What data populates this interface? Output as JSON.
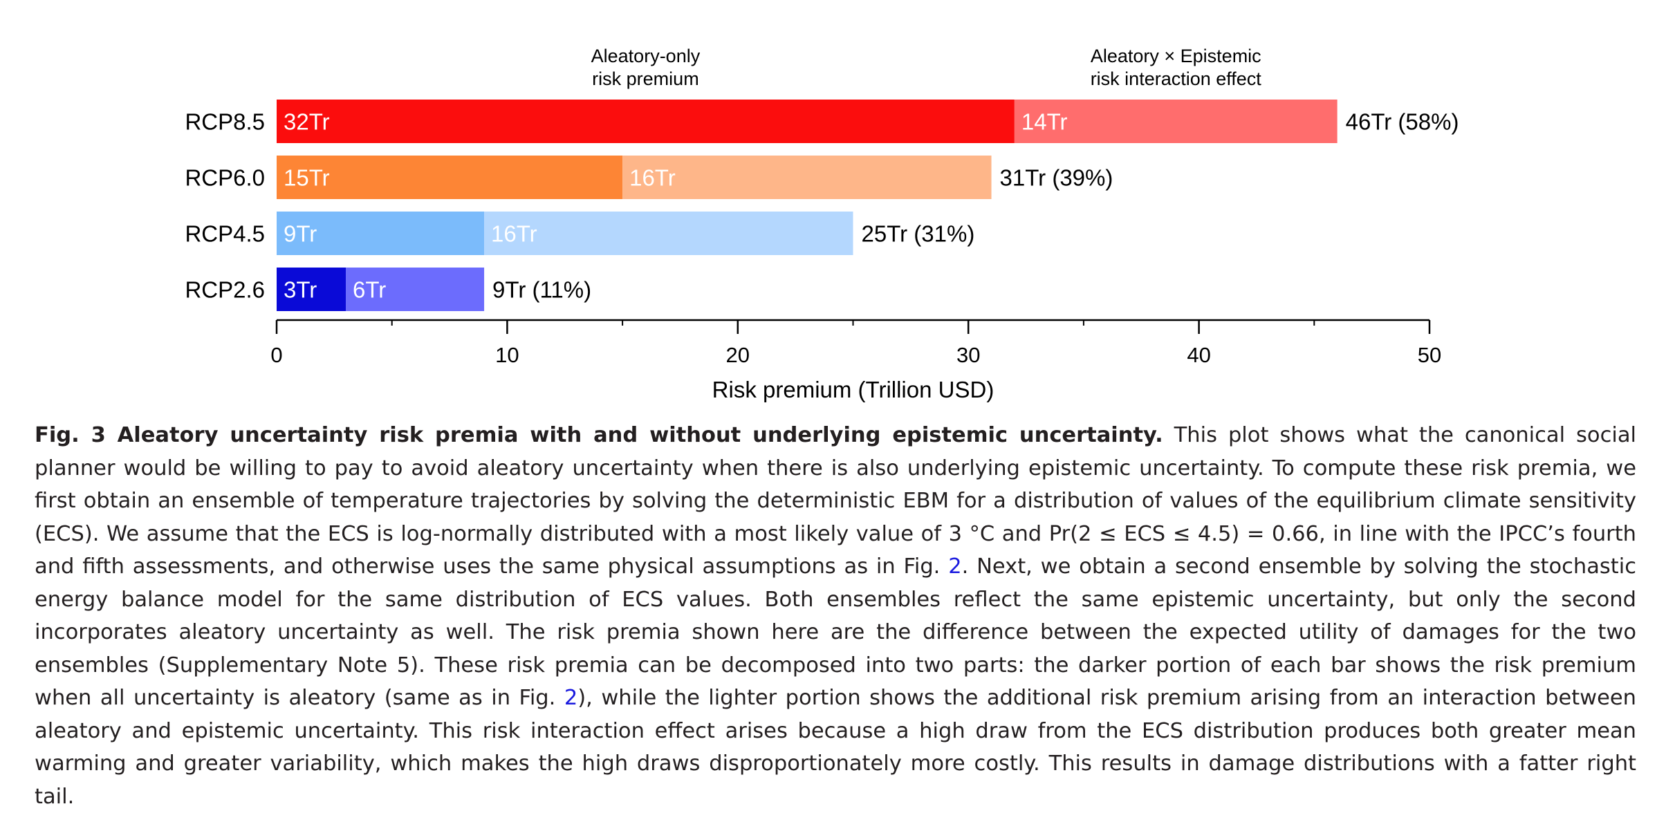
{
  "chart_data": {
    "type": "bar",
    "orientation": "horizontal",
    "stacked": true,
    "categories": [
      "RCP8.5",
      "RCP6.0",
      "RCP4.5",
      "RCP2.6"
    ],
    "series": [
      {
        "name": "Aleatory-only risk premium",
        "header_lines": [
          "Aleatory-only",
          "risk premium"
        ],
        "values": [
          32,
          15,
          9,
          3
        ],
        "labels": [
          "32Tr",
          "15Tr",
          "9Tr",
          "3Tr"
        ],
        "colors": [
          "#fb0d0d",
          "#fd8535",
          "#7bbbfb",
          "#0a0ad7"
        ]
      },
      {
        "name": "Aleatory × Epistemic risk interaction effect",
        "header_lines": [
          "Aleatory × Epistemic",
          "risk interaction effect"
        ],
        "values": [
          14,
          16,
          16,
          6
        ],
        "labels": [
          "14Tr",
          "16Tr",
          "16Tr",
          "6Tr"
        ],
        "colors": [
          "#ff6d6d",
          "#feb689",
          "#b4d7fe",
          "#6c6cfd"
        ]
      }
    ],
    "totals": [
      46,
      31,
      25,
      9
    ],
    "total_labels": [
      "46Tr (58%)",
      "31Tr (39%)",
      "25Tr (31%)",
      "9Tr (11%)"
    ],
    "xlabel": "Risk premium (Trillion USD)",
    "xlim": [
      0,
      50
    ],
    "xticks": [
      0,
      10,
      20,
      30,
      40,
      50
    ],
    "minor_ticks": [
      5,
      15,
      25,
      35,
      45
    ],
    "grid": false,
    "legend": "series names shown as headers above the top bar"
  },
  "caption": {
    "title": "Fig. 3 Aleatory uncertainty risk premia with and without underlying epistemic uncertainty.",
    "body_part1": " This plot shows what the canonical social planner would be willing to pay to avoid aleatory uncertainty when there is also underlying epistemic uncertainty. To compute these risk premia, we first obtain an ensemble of temperature trajectories by solving the deterministic EBM for a distribution of values of the equilibrium climate sensitivity (ECS). We assume that the ECS is log-normally distributed with a most likely value of 3 °C and Pr(2 ≤ ECS ≤ 4.5) = 0.66, in line with the IPCC’s fourth and fifth assessments, and otherwise uses the same physical assumptions as in Fig. ",
    "ref1": "2",
    "body_part2": ". Next, we obtain a second ensemble by solving the stochastic energy balance model for the same distribution of ECS values. Both ensembles reflect the same epistemic uncertainty, but only the second incorporates aleatory uncertainty as well. The risk premia shown here are the difference between the expected utility of damages for the two ensembles (Supplementary Note 5). These risk premia can be decomposed into two parts: the darker portion of each bar shows the risk premium when all uncertainty is aleatory (same as in Fig. ",
    "ref2": "2",
    "body_part3": "), while the lighter portion shows the additional risk premium arising from an interaction between aleatory and epistemic uncertainty. This risk interaction effect arises because a high draw from the ECS distribution produces both greater mean warming and greater variability, which makes the high draws disproportionately more costly. This results in damage distributions with a fatter right tail."
  }
}
